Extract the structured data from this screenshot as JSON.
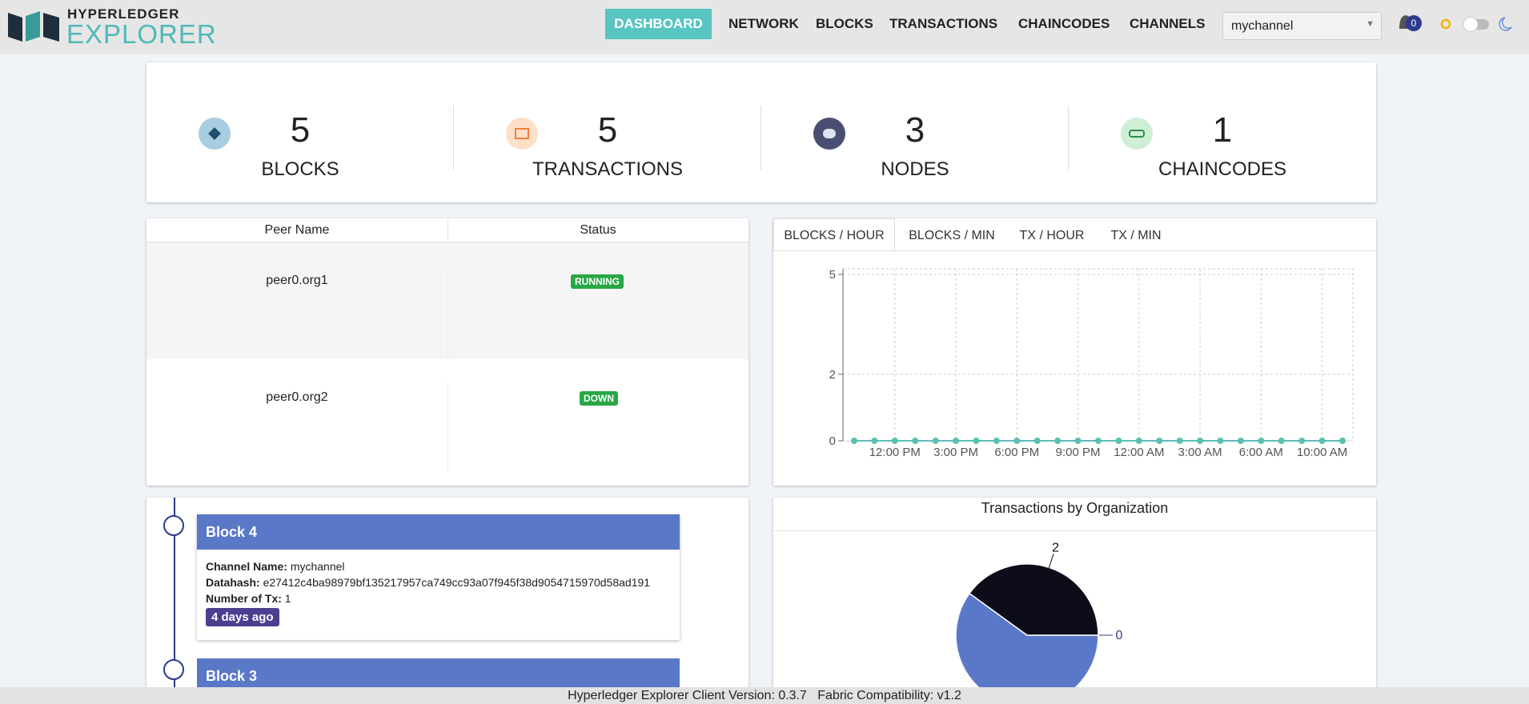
{
  "header": {
    "logo_top": "HYPERLEDGER",
    "logo_bottom": "EXPLORER",
    "nav": [
      "DASHBOARD",
      "NETWORK",
      "BLOCKS",
      "TRANSACTIONS",
      "CHAINCODES",
      "CHANNELS"
    ],
    "channel": "mychannel",
    "notifications": 0
  },
  "stats": [
    {
      "value": 5,
      "label": "BLOCKS"
    },
    {
      "value": 5,
      "label": "TRANSACTIONS"
    },
    {
      "value": 3,
      "label": "NODES"
    },
    {
      "value": 1,
      "label": "CHAINCODES"
    }
  ],
  "peers": {
    "columns": [
      "Peer Name",
      "Status"
    ],
    "rows": [
      [
        "peer0.org1",
        "RUNNING"
      ],
      [
        "peer0.org2",
        "DOWN"
      ]
    ]
  },
  "chart_tabs": [
    "BLOCKS / HOUR",
    "BLOCKS / MIN",
    "TX / HOUR",
    "TX / MIN"
  ],
  "chart_data": [
    {
      "type": "line",
      "categories": [
        null,
        null,
        "12:00 PM",
        null,
        null,
        "3:00 PM",
        null,
        null,
        "6:00 PM",
        null,
        null,
        "9:00 PM",
        null,
        null,
        "12:00 AM",
        null,
        null,
        "3:00 AM",
        null,
        null,
        "6:00 AM",
        null,
        null,
        "10:00 AM",
        null
      ],
      "series": [
        {
          "color": "#5bbfb5",
          "values": [
            0,
            0,
            0,
            0,
            0,
            0,
            0,
            0,
            0,
            0,
            0,
            0,
            0,
            0,
            0,
            0,
            0,
            0,
            0,
            0,
            0,
            0,
            0,
            0,
            0
          ]
        }
      ],
      "ylim": [
        0,
        5
      ],
      "yticks": [
        0,
        2,
        5
      ],
      "grid": true
    },
    {
      "type": "pie",
      "title": "Transactions by Organization",
      "values": [
        0,
        3,
        2
      ],
      "colors": [
        "#2a3d8f",
        "#5a78c8",
        "#0d0d1a"
      ]
    }
  ],
  "blocks": [
    {
      "title": "Block 4",
      "channel_label": "Channel Name:",
      "channel": "mychannel",
      "datahash_label": "Datahash:",
      "datahash": "e27412c4ba98979bf135217957ca749cc93a07f945f38d9054715970d58ad191",
      "tx_label": "Number of Tx:",
      "tx": 1,
      "age": "4 days ago"
    },
    {
      "title": "Block 3"
    }
  ],
  "footer": {
    "client": "Hyperledger Explorer Client Version: 0.3.7",
    "fabric": "Fabric Compatibility: v1.2"
  }
}
